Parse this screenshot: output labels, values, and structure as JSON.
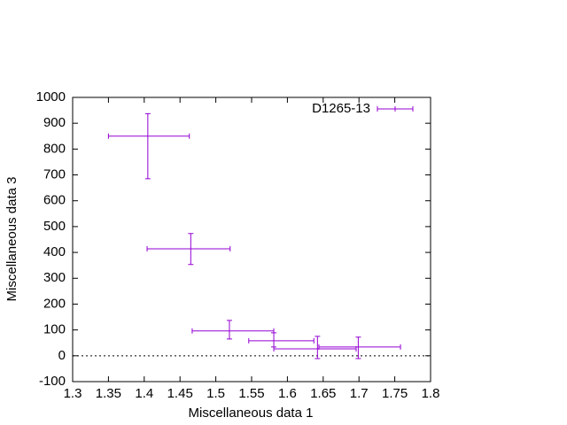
{
  "chart_data": {
    "type": "xyerrorbars",
    "xlabel": "Miscellaneous data 1",
    "ylabel": "Miscellaneous data 3",
    "series": [
      {
        "name": "D1265-13",
        "color": "#9400d3",
        "x": [
          1.405,
          1.465,
          1.519,
          1.581,
          1.642,
          1.699
        ],
        "y": [
          850,
          414,
          96,
          58,
          27,
          34
        ],
        "xlow": [
          1.35,
          1.404,
          1.467,
          1.546,
          1.581,
          1.644
        ],
        "xhigh": [
          1.463,
          1.52,
          1.581,
          1.637,
          1.696,
          1.758
        ],
        "ylow": [
          685,
          353,
          65,
          34,
          -11,
          -11
        ],
        "yhigh": [
          937,
          473,
          137,
          89,
          75,
          72
        ]
      }
    ],
    "xlim": [
      1.3,
      1.8
    ],
    "xticks": [
      1.3,
      1.35,
      1.4,
      1.45,
      1.5,
      1.55,
      1.6,
      1.65,
      1.7,
      1.75,
      1.8
    ],
    "ylim": [
      -100,
      1000
    ],
    "yticks": [
      -100,
      0,
      100,
      200,
      300,
      400,
      500,
      600,
      700,
      800,
      900,
      1000
    ],
    "zero_line": true,
    "legend": "top-right"
  }
}
